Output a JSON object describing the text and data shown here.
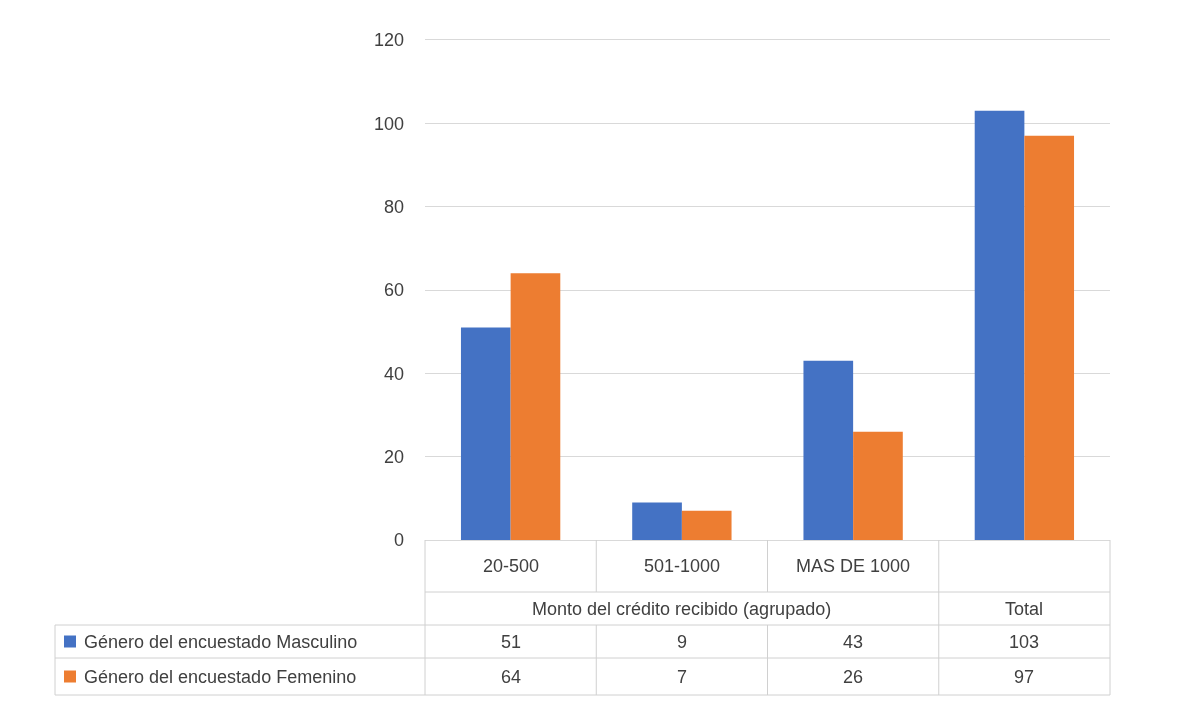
{
  "chart_data": {
    "type": "bar",
    "categories": [
      "20-500",
      "501-1000",
      "MAS DE 1000",
      null
    ],
    "annotations": [
      "Total"
    ],
    "xlabel": "Monto del crédito recibido (agrupado)",
    "series": [
      {
        "name": "Género del encuestado Masculino",
        "color": "#4472c4",
        "values": [
          51,
          9,
          43,
          103
        ]
      },
      {
        "name": "Género del encuestado Femenino",
        "color": "#ed7d31",
        "values": [
          64,
          7,
          26,
          97
        ]
      }
    ],
    "ylim": [
      0,
      120
    ],
    "yticks": [
      0,
      20,
      40,
      60,
      80,
      100,
      120
    ],
    "grid": "y",
    "legend": "bottom",
    "data_labels": true
  }
}
